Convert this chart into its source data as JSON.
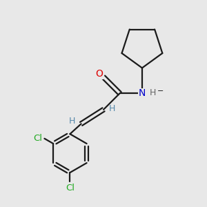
{
  "background_color": "#e8e8e8",
  "bond_color": "#1a1a1a",
  "O_color": "#dd0000",
  "N_color": "#0000cc",
  "Cl_color": "#22aa22",
  "H_vinyl_color": "#5588aa",
  "figsize": [
    3.0,
    3.0
  ],
  "dpi": 100,
  "xlim": [
    0,
    10
  ],
  "ylim": [
    0,
    10
  ]
}
